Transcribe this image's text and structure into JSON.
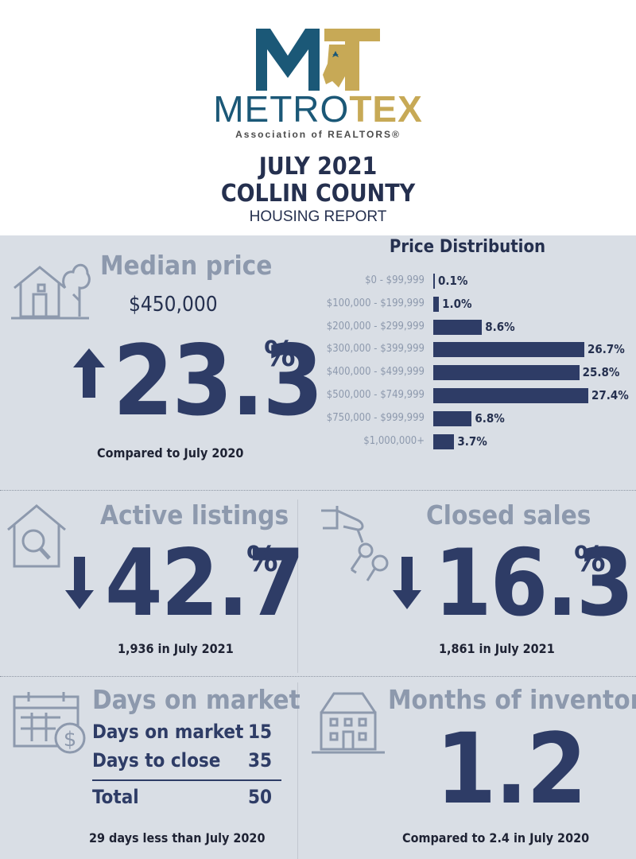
{
  "header": {
    "logo_metro": "METRO",
    "logo_tex": "TEX",
    "logo_sub": "Association of REALTORS®",
    "title_month": "JULY 2021",
    "title_county": "COLLIN COUNTY",
    "title_report": "HOUSING REPORT"
  },
  "median": {
    "title": "Median price",
    "price": "$450,000",
    "change": "23.3",
    "pct": "%",
    "direction": "up",
    "note": "Compared to July 2020",
    "icon": "house-tree-icon"
  },
  "price_distribution": {
    "title": "Price Distribution",
    "rows": [
      {
        "label": "$0 - $99,999",
        "value": "0.1%"
      },
      {
        "label": "$100,000 - $199,999",
        "value": "1.0%"
      },
      {
        "label": "$200,000 - $299,999",
        "value": "8.6%"
      },
      {
        "label": "$300,000 - $399,999",
        "value": "26.7%"
      },
      {
        "label": "$400,000 - $499,999",
        "value": "25.8%"
      },
      {
        "label": "$500,000 - $749,999",
        "value": "27.4%"
      },
      {
        "label": "$750,000 - $999,999",
        "value": "6.8%"
      },
      {
        "label": "$1,000,000+",
        "value": "3.7%"
      }
    ]
  },
  "chart_data": {
    "type": "bar",
    "title": "Price Distribution",
    "categories": [
      "$0 - $99,999",
      "$100,000 - $199,999",
      "$200,000 - $299,999",
      "$300,000 - $399,999",
      "$400,000 - $499,999",
      "$500,000 - $749,999",
      "$750,000 - $999,999",
      "$1,000,000+"
    ],
    "values": [
      0.1,
      1.0,
      8.6,
      26.7,
      25.8,
      27.4,
      6.8,
      3.7
    ],
    "orientation": "horizontal",
    "color": "#2e3c66"
  },
  "active": {
    "title": "Active listings",
    "change": "42.7",
    "pct": "%",
    "direction": "down",
    "note": "1,936 in July 2021",
    "icon": "house-magnifier-icon"
  },
  "closed": {
    "title": "Closed sales",
    "change": "16.3",
    "pct": "%",
    "direction": "down",
    "note": "1,861 in July 2021",
    "icon": "hand-keys-icon"
  },
  "dom": {
    "title": "Days on market",
    "rows": [
      {
        "label": "Days on market",
        "value": "15"
      },
      {
        "label": "Days to close",
        "value": "35"
      }
    ],
    "total_label": "Total",
    "total_value": "50",
    "note": "29 days less than July 2020",
    "icon": "calendar-dollar-icon"
  },
  "inventory": {
    "title": "Months of inventory",
    "value": "1.2",
    "note": "Compared to 2.4 in July 2020",
    "icon": "building-icon"
  },
  "colors": {
    "navy": "#2e3c66",
    "gray_title": "#8d99ad",
    "panel": "#d9dee5",
    "logo_blue": "#1b5877",
    "logo_gold": "#c7a956"
  }
}
